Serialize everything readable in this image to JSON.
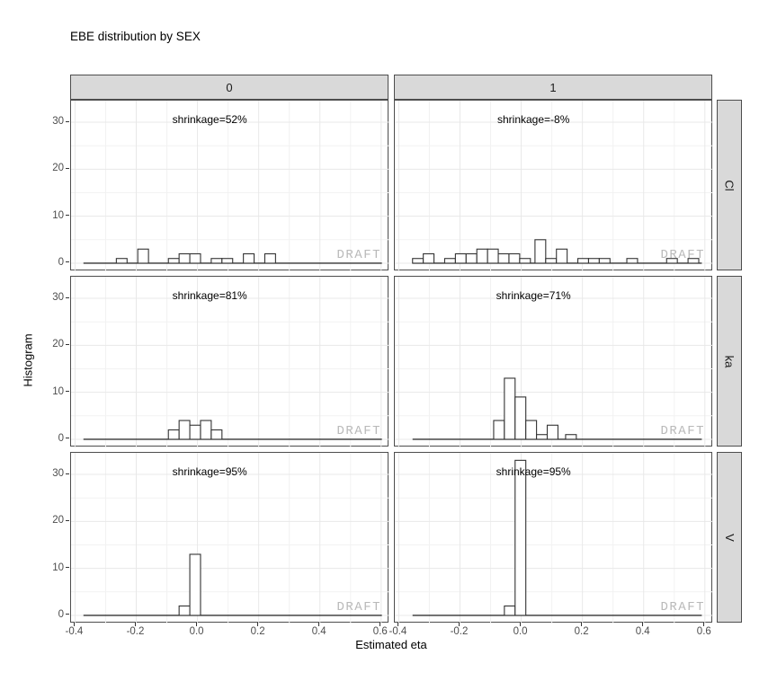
{
  "title": "EBE distribution by SEX",
  "watermark": "DRAFT",
  "axes": {
    "x_label": "Estimated eta",
    "y_label": "Histogram",
    "x_tick_labels": [
      "-0.4",
      "-0.2",
      "0.0",
      "0.2",
      "0.4",
      "0.6"
    ],
    "x_tick_values": [
      -0.4,
      -0.2,
      0.0,
      0.2,
      0.4,
      0.6
    ],
    "x_minor_values": [
      -0.3,
      -0.1,
      0.1,
      0.3,
      0.5
    ],
    "y_tick_labels": [
      "0",
      "10",
      "20",
      "30"
    ],
    "y_tick_values": [
      0,
      10,
      20,
      30
    ],
    "y_minor_values": [
      5,
      15,
      25
    ],
    "x_range": [
      -0.413,
      0.627
    ],
    "y_range": [
      -1.73,
      34.6
    ],
    "grid": "on"
  },
  "facets": {
    "col_labels": [
      "0",
      "1"
    ],
    "row_labels": [
      "Cl",
      "ka",
      "V"
    ]
  },
  "chart_data": {
    "type": "bar",
    "subtype": "histogram-facet-grid",
    "binwidth": 0.035,
    "xlabel": "Estimated eta",
    "ylabel": "Histogram",
    "xlim": [
      -0.413,
      0.627
    ],
    "ylim": [
      -1.73,
      34.6
    ],
    "panels": [
      {
        "row": 0,
        "col": 0,
        "row_label": "Cl",
        "col_label": "0",
        "shrinkage_label": "shrinkage=52%",
        "baseline_range": [
          -0.3725,
          0.6025
        ],
        "bars": [
          {
            "x": -0.265,
            "h": 1
          },
          {
            "x": -0.195,
            "h": 3
          },
          {
            "x": -0.095,
            "h": 1
          },
          {
            "x": -0.06,
            "h": 2
          },
          {
            "x": -0.025,
            "h": 2
          },
          {
            "x": 0.045,
            "h": 1
          },
          {
            "x": 0.08,
            "h": 1
          },
          {
            "x": 0.15,
            "h": 2
          },
          {
            "x": 0.22,
            "h": 2
          }
        ]
      },
      {
        "row": 0,
        "col": 1,
        "row_label": "Cl",
        "col_label": "1",
        "shrinkage_label": "shrinkage=-8%",
        "baseline_range": [
          -0.355,
          0.59
        ],
        "bars": [
          {
            "x": -0.355,
            "h": 1
          },
          {
            "x": -0.32,
            "h": 2
          },
          {
            "x": -0.25,
            "h": 1
          },
          {
            "x": -0.215,
            "h": 2
          },
          {
            "x": -0.18,
            "h": 2
          },
          {
            "x": -0.145,
            "h": 3
          },
          {
            "x": -0.11,
            "h": 3
          },
          {
            "x": -0.075,
            "h": 2
          },
          {
            "x": -0.04,
            "h": 2
          },
          {
            "x": -0.005,
            "h": 1
          },
          {
            "x": 0.045,
            "h": 5
          },
          {
            "x": 0.08,
            "h": 1
          },
          {
            "x": 0.115,
            "h": 3
          },
          {
            "x": 0.185,
            "h": 1
          },
          {
            "x": 0.22,
            "h": 1
          },
          {
            "x": 0.255,
            "h": 1
          },
          {
            "x": 0.345,
            "h": 1
          },
          {
            "x": 0.475,
            "h": 1
          },
          {
            "x": 0.545,
            "h": 1
          }
        ]
      },
      {
        "row": 1,
        "col": 0,
        "row_label": "ka",
        "col_label": "0",
        "shrinkage_label": "shrinkage=81%",
        "baseline_range": [
          -0.3725,
          0.6025
        ],
        "bars": [
          {
            "x": -0.095,
            "h": 2
          },
          {
            "x": -0.06,
            "h": 4
          },
          {
            "x": -0.025,
            "h": 3
          },
          {
            "x": 0.01,
            "h": 4
          },
          {
            "x": 0.045,
            "h": 2
          }
        ]
      },
      {
        "row": 1,
        "col": 1,
        "row_label": "ka",
        "col_label": "1",
        "shrinkage_label": "shrinkage=71%",
        "baseline_range": [
          -0.355,
          0.59
        ],
        "bars": [
          {
            "x": -0.09,
            "h": 4
          },
          {
            "x": -0.055,
            "h": 13
          },
          {
            "x": -0.02,
            "h": 9
          },
          {
            "x": 0.015,
            "h": 4
          },
          {
            "x": 0.05,
            "h": 1
          },
          {
            "x": 0.085,
            "h": 3
          },
          {
            "x": 0.145,
            "h": 1
          }
        ]
      },
      {
        "row": 2,
        "col": 0,
        "row_label": "V",
        "col_label": "0",
        "shrinkage_label": "shrinkage=95%",
        "baseline_range": [
          -0.3725,
          0.6025
        ],
        "bars": [
          {
            "x": -0.06,
            "h": 2
          },
          {
            "x": -0.025,
            "h": 13
          }
        ]
      },
      {
        "row": 2,
        "col": 1,
        "row_label": "V",
        "col_label": "1",
        "shrinkage_label": "shrinkage=95%",
        "baseline_range": [
          -0.355,
          0.59
        ],
        "bars": [
          {
            "x": -0.055,
            "h": 2
          },
          {
            "x": -0.02,
            "h": 33
          }
        ]
      }
    ]
  },
  "colors": {
    "background": "#ffffff",
    "panel_border": "#4d4d4d",
    "grid_major": "#e8e8e8",
    "grid_minor": "#f2f2f2",
    "strip_fill": "#d9d9d9",
    "bar_fill": "#ffffff",
    "bar_stroke": "#333333",
    "baseline": "#333333",
    "watermark_gray": "#b9b9b9",
    "tick_label": "#4d4d4d"
  }
}
